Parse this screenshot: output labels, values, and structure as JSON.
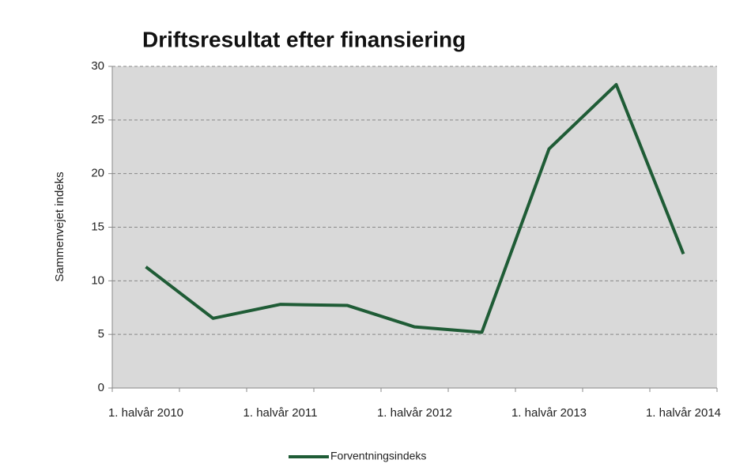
{
  "chart_data": {
    "type": "line",
    "title": "Driftsresultat efter finansiering",
    "y_label": "Sammenvejet indeks",
    "categories": [
      "1. halvår 2010",
      null,
      "1. halvår 2011",
      null,
      "1. halvår 2012",
      null,
      "1. halvår 2013",
      null,
      "1. halvår 2014"
    ],
    "series": [
      {
        "name": "Forventningsindeks",
        "color": "#1f5c36",
        "values": [
          11.3,
          6.5,
          7.8,
          7.7,
          5.7,
          5.2,
          22.3,
          28.3,
          12.5
        ]
      }
    ],
    "ylim": [
      0,
      30
    ],
    "yticks": [
      0,
      5,
      10,
      15,
      20,
      25,
      30
    ],
    "grid": true,
    "legend": "bottom"
  }
}
